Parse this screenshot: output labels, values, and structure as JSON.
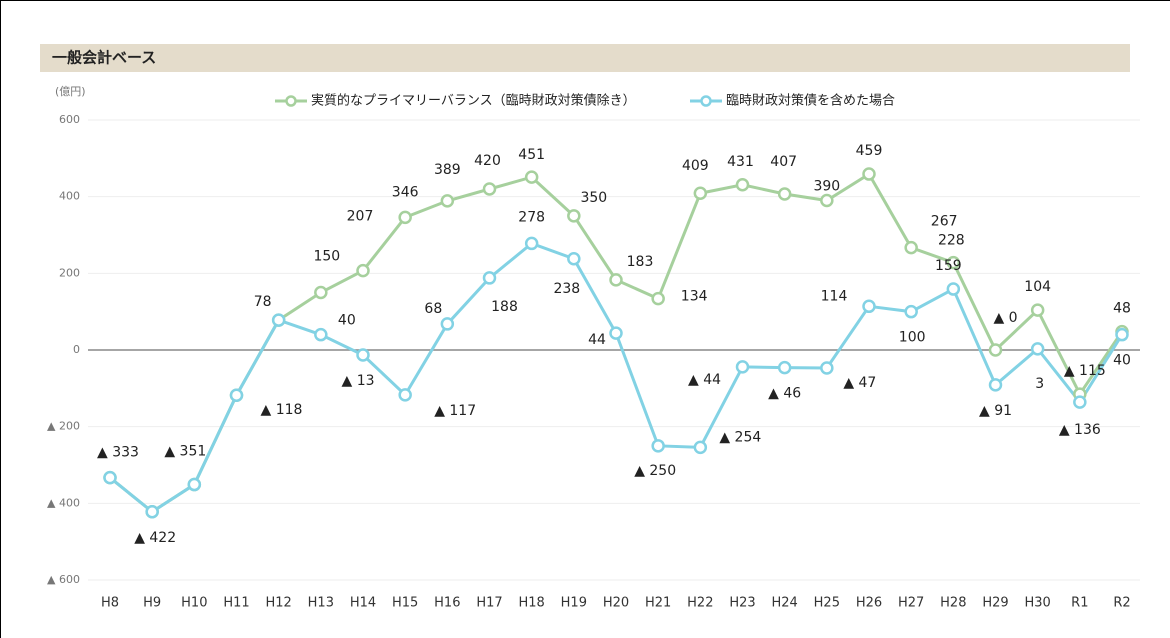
{
  "chart_data": {
    "type": "line",
    "title": "一般会計ベース",
    "y_unit": "(億円)",
    "categories": [
      "H8",
      "H9",
      "H10",
      "H11",
      "H12",
      "H13",
      "H14",
      "H15",
      "H16",
      "H17",
      "H18",
      "H19",
      "H20",
      "H21",
      "H22",
      "H23",
      "H24",
      "H25",
      "H26",
      "H27",
      "H28",
      "H29",
      "H30",
      "R1",
      "R2"
    ],
    "series": [
      {
        "name": "実質的なプライマリーバランス（臨時財政対策債除き）",
        "color": "#a6d09d",
        "values": [
          -333,
          -422,
          -351,
          -118,
          78,
          150,
          207,
          346,
          389,
          420,
          451,
          350,
          183,
          134,
          409,
          431,
          407,
          390,
          459,
          267,
          228,
          0,
          104,
          -115,
          48
        ],
        "value_labels": [
          null,
          null,
          null,
          null,
          null,
          "150",
          "207",
          "346",
          "389",
          "420",
          "451",
          "350",
          "183",
          "134",
          "409",
          "431",
          "407",
          "390",
          "459",
          "267",
          "228",
          "▲ 0",
          "104",
          "▲ 115",
          "48"
        ]
      },
      {
        "name": "臨時財政対策債を含めた場合",
        "color": "#82d2e4",
        "values": [
          -333,
          -422,
          -351,
          -118,
          78,
          40,
          -13,
          -117,
          68,
          188,
          278,
          238,
          44,
          -250,
          -254,
          -44,
          -46,
          -47,
          114,
          100,
          159,
          -91,
          3,
          -136,
          40
        ],
        "value_labels": [
          "▲ 333",
          "▲ 422",
          "▲ 351",
          "▲ 118",
          "78",
          "40",
          "▲ 13",
          "▲ 117",
          "68",
          "188",
          "278",
          "238",
          "44",
          "▲ 250",
          "▲ 254",
          "▲ 44",
          "▲ 46",
          "▲ 47",
          "114",
          "100",
          "159",
          "▲ 91",
          "3",
          "▲ 136",
          "40"
        ]
      }
    ],
    "ylim": [
      -600,
      600
    ],
    "yticks": [
      {
        "value": -600,
        "label": "▲ 600"
      },
      {
        "value": -400,
        "label": "▲ 400"
      },
      {
        "value": -200,
        "label": "▲ 200"
      },
      0,
      200,
      400,
      600
    ],
    "grid": true
  }
}
